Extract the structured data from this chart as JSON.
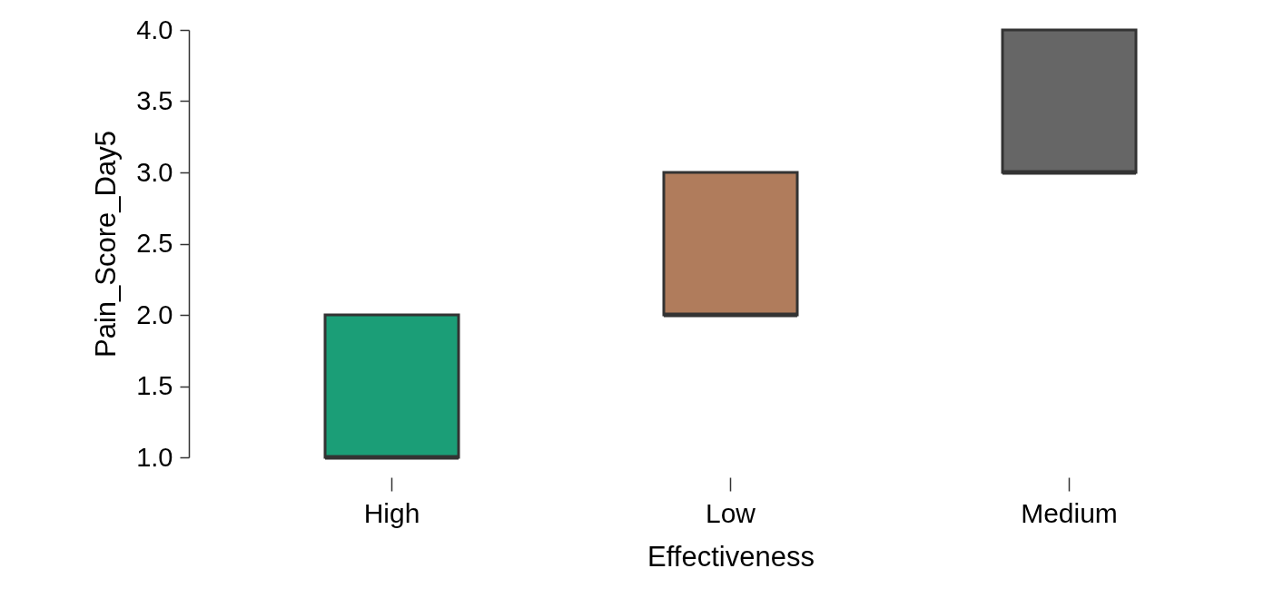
{
  "chart_data": {
    "type": "box",
    "xlabel": "Effectiveness",
    "ylabel": "Pain_Score_Day5",
    "categories": [
      "High",
      "Low",
      "Medium"
    ],
    "colors": [
      "#1b9e77",
      "#b07c5c",
      "#666666"
    ],
    "boxes": [
      {
        "low": 1,
        "q1": 1,
        "median": 1,
        "q3": 2,
        "high": 2
      },
      {
        "low": 2,
        "q1": 2,
        "median": 2,
        "q3": 3,
        "high": 3
      },
      {
        "low": 3,
        "q1": 3,
        "median": 3,
        "q3": 4,
        "high": 4
      }
    ],
    "ylim": [
      1,
      4
    ],
    "yticks": [
      {
        "value": 1,
        "label": "1.0"
      },
      1.5,
      {
        "value": 2,
        "label": "2.0"
      },
      2.5,
      {
        "value": 3,
        "label": "3.0"
      },
      3.5,
      {
        "value": 4,
        "label": "4.0"
      }
    ]
  }
}
